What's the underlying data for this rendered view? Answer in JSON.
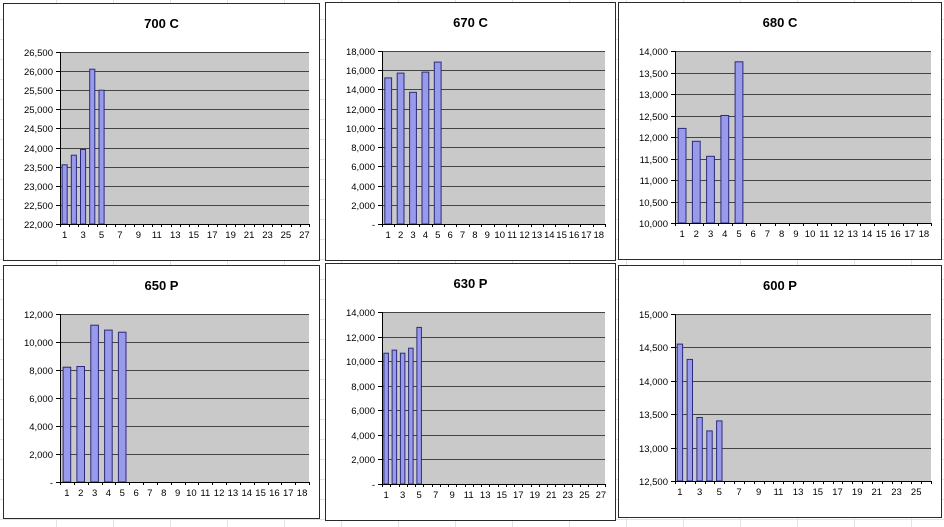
{
  "colors": {
    "page_bg": "#ffffff",
    "sheet_grid": "#e3e3e3",
    "chart_bg": "#ffffff",
    "chart_border": "#2b2b2b",
    "plot_bg": "#c9c9c9",
    "gridline": "#444444",
    "axis": "#000000",
    "bar_fill": "#9a9aec",
    "bar_border": "#2b2b7a",
    "text": "#000000"
  },
  "chart_data": [
    {
      "type": "bar",
      "title": "700 C",
      "ncats": 27,
      "ymin": 22000,
      "ymax": 26500,
      "ystep": 500,
      "ytick_labels": [
        "22,000",
        "22,500",
        "23,000",
        "23,500",
        "24,000",
        "24,500",
        "25,000",
        "25,500",
        "26,000",
        "26,500"
      ],
      "xtick_labels": [
        "1",
        "3",
        "5",
        "7",
        "9",
        "11",
        "13",
        "15",
        "17",
        "19",
        "21",
        "23",
        "25",
        "27"
      ],
      "values": [
        23550,
        23800,
        23950,
        26050,
        25500
      ],
      "grid": true,
      "legend": "none"
    },
    {
      "type": "bar",
      "title": "670 C",
      "ncats": 18,
      "ymin": 0,
      "ymax": 18000,
      "ystep": 2000,
      "ytick_labels": [
        "-",
        "2,000",
        "4,000",
        "6,000",
        "8,000",
        "10,000",
        "12,000",
        "14,000",
        "16,000",
        "18,000"
      ],
      "xtick_labels": [
        "1",
        "2",
        "3",
        "4",
        "5",
        "6",
        "7",
        "8",
        "9",
        "10",
        "11",
        "12",
        "13",
        "14",
        "15",
        "16",
        "17",
        "18"
      ],
      "values": [
        15200,
        15700,
        13700,
        15800,
        16850
      ],
      "grid": true,
      "legend": "none"
    },
    {
      "type": "bar",
      "title": "680 C",
      "ncats": 18,
      "ymin": 10000,
      "ymax": 14000,
      "ystep": 500,
      "ytick_labels": [
        "10,000",
        "10,500",
        "11,000",
        "11,500",
        "12,000",
        "12,500",
        "13,000",
        "13,500",
        "14,000"
      ],
      "xtick_labels": [
        "1",
        "2",
        "3",
        "4",
        "5",
        "6",
        "7",
        "8",
        "9",
        "10",
        "11",
        "12",
        "13",
        "14",
        "15",
        "16",
        "17",
        "18"
      ],
      "values": [
        12200,
        11900,
        11550,
        12500,
        13750
      ],
      "grid": true,
      "legend": "none"
    },
    {
      "type": "bar",
      "title": "650 P",
      "ncats": 18,
      "ymin": 0,
      "ymax": 12000,
      "ystep": 2000,
      "ytick_labels": [
        "-",
        "2,000",
        "4,000",
        "6,000",
        "8,000",
        "10,000",
        "12,000"
      ],
      "xtick_labels": [
        "1",
        "2",
        "3",
        "4",
        "5",
        "6",
        "7",
        "8",
        "9",
        "10",
        "11",
        "12",
        "13",
        "14",
        "15",
        "16",
        "17",
        "18"
      ],
      "values": [
        8200,
        8250,
        11200,
        10850,
        10700
      ],
      "grid": true,
      "legend": "none"
    },
    {
      "type": "bar",
      "title": "630 P",
      "ncats": 27,
      "ymin": 0,
      "ymax": 14000,
      "ystep": 2000,
      "ytick_labels": [
        "-",
        "2,000",
        "4,000",
        "6,000",
        "8,000",
        "10,000",
        "12,000",
        "14,000"
      ],
      "xtick_labels": [
        "1",
        "3",
        "5",
        "7",
        "9",
        "11",
        "13",
        "15",
        "17",
        "19",
        "21",
        "23",
        "25",
        "27"
      ],
      "values": [
        10650,
        10900,
        10650,
        11050,
        12750
      ],
      "grid": true,
      "legend": "none"
    },
    {
      "type": "bar",
      "title": "600 P",
      "ncats": 26,
      "ymin": 12500,
      "ymax": 15000,
      "ystep": 500,
      "ytick_labels": [
        "12,500",
        "13,000",
        "13,500",
        "14,000",
        "14,500",
        "15,000"
      ],
      "xtick_labels": [
        "1",
        "3",
        "5",
        "7",
        "9",
        "11",
        "13",
        "15",
        "17",
        "19",
        "21",
        "23",
        "25"
      ],
      "values": [
        14550,
        14320,
        13450,
        13250,
        13400
      ],
      "grid": true,
      "legend": "none"
    }
  ]
}
